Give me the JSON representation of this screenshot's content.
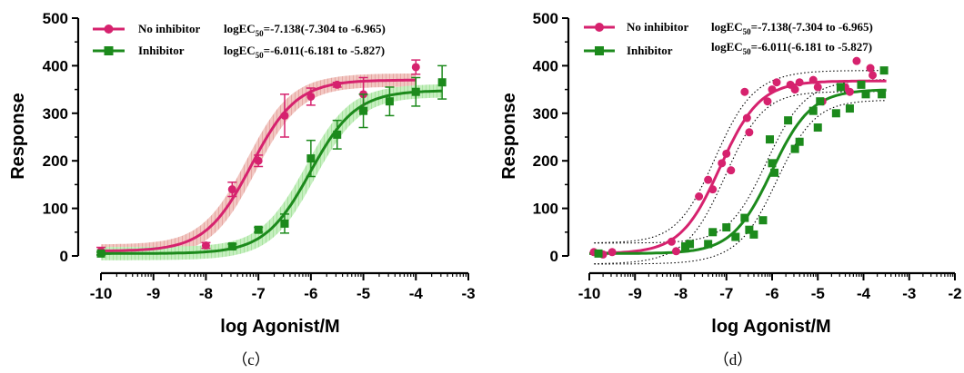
{
  "colors": {
    "no_inhibitor": "#d6226e",
    "inhibitor": "#1c8a1c",
    "band_no_inhibitor": "#e9a7a8",
    "band_inhibitor": "#a9e6a3",
    "axis": "#000000"
  },
  "chart_data": [
    {
      "panel_label": "（c）",
      "type": "scatter",
      "fit": "sigmoidal dose-response",
      "xlabel": "log Agonist/M",
      "ylabel": "Response",
      "xlim": [
        -10,
        -3
      ],
      "ylim": [
        0,
        500
      ],
      "xticks": [
        "-10",
        "-9",
        "-8",
        "-7",
        "-6",
        "-5",
        "-4",
        "-3"
      ],
      "yticks": [
        "0",
        "100",
        "200",
        "300",
        "400",
        "500"
      ],
      "band": "shaded confidence band",
      "series": [
        {
          "name": "No inhibitor",
          "logec50_text": "logEC50=-7.138(-7.304 to -6.965)",
          "marker": "circle",
          "fit_params": {
            "bottom": 10,
            "top": 370,
            "logec50": -7.138,
            "hill": 1.0
          },
          "points": [
            {
              "x": -10,
              "y": 10,
              "err": 8
            },
            {
              "x": -8,
              "y": 22,
              "err": 6
            },
            {
              "x": -7.5,
              "y": 140,
              "err": 15
            },
            {
              "x": -7,
              "y": 200,
              "err": 12
            },
            {
              "x": -6.5,
              "y": 295,
              "err": 45
            },
            {
              "x": -6,
              "y": 335,
              "err": 18
            },
            {
              "x": -5.5,
              "y": 360,
              "err": 5
            },
            {
              "x": -5,
              "y": 340,
              "err": 35
            },
            {
              "x": -4,
              "y": 397,
              "err": 15
            }
          ]
        },
        {
          "name": "Inhibitor",
          "logec50_text": "logEC50=-6.011(-6.181 to -5.827)",
          "marker": "square",
          "fit_params": {
            "bottom": 5,
            "top": 348,
            "logec50": -6.011,
            "hill": 1.0
          },
          "points": [
            {
              "x": -10,
              "y": 5,
              "err": 3
            },
            {
              "x": -7.5,
              "y": 20,
              "err": 5
            },
            {
              "x": -7,
              "y": 55,
              "err": 5
            },
            {
              "x": -6.5,
              "y": 68,
              "err": 20
            },
            {
              "x": -6,
              "y": 205,
              "err": 38
            },
            {
              "x": -5.5,
              "y": 255,
              "err": 30
            },
            {
              "x": -5,
              "y": 305,
              "err": 35
            },
            {
              "x": -4.5,
              "y": 325,
              "err": 30
            },
            {
              "x": -4,
              "y": 345,
              "err": 30
            },
            {
              "x": -3.5,
              "y": 365,
              "err": 35
            }
          ]
        }
      ]
    },
    {
      "panel_label": "（d）",
      "type": "scatter",
      "fit": "sigmoidal dose-response",
      "xlabel": "log Agonist/M",
      "ylabel": "Response",
      "xlim": [
        -10,
        -2
      ],
      "ylim": [
        0,
        500
      ],
      "xticks": [
        "-10",
        "-9",
        "-8",
        "-7",
        "-6",
        "-5",
        "-4",
        "-3",
        "-2"
      ],
      "yticks": [
        "0",
        "100",
        "200",
        "300",
        "400",
        "500"
      ],
      "band": "dotted confidence bands",
      "series": [
        {
          "name": "No inhibitor",
          "logec50_text": "logEC50=-7.138(-7.304 to -6.965)",
          "marker": "circle",
          "fit_params": {
            "bottom": 5,
            "top": 368,
            "logec50": -7.138,
            "hill": 1.0
          },
          "points": [
            {
              "x": -9.9,
              "y": 8
            },
            {
              "x": -9.7,
              "y": 3
            },
            {
              "x": -9.5,
              "y": 8
            },
            {
              "x": -8.2,
              "y": 30
            },
            {
              "x": -8.1,
              "y": 10
            },
            {
              "x": -7.6,
              "y": 125
            },
            {
              "x": -7.4,
              "y": 160
            },
            {
              "x": -7.3,
              "y": 140
            },
            {
              "x": -7.1,
              "y": 195
            },
            {
              "x": -7.0,
              "y": 215
            },
            {
              "x": -6.9,
              "y": 180
            },
            {
              "x": -6.6,
              "y": 345
            },
            {
              "x": -6.55,
              "y": 290
            },
            {
              "x": -6.5,
              "y": 260
            },
            {
              "x": -6.1,
              "y": 325
            },
            {
              "x": -6.0,
              "y": 350
            },
            {
              "x": -5.9,
              "y": 365
            },
            {
              "x": -5.6,
              "y": 360
            },
            {
              "x": -5.5,
              "y": 350
            },
            {
              "x": -5.4,
              "y": 365
            },
            {
              "x": -5.1,
              "y": 370
            },
            {
              "x": -5.0,
              "y": 355
            },
            {
              "x": -4.9,
              "y": 325
            },
            {
              "x": -4.4,
              "y": 355
            },
            {
              "x": -4.3,
              "y": 345
            },
            {
              "x": -4.15,
              "y": 410
            },
            {
              "x": -3.85,
              "y": 395
            },
            {
              "x": -3.8,
              "y": 380
            }
          ]
        },
        {
          "name": "Inhibitor",
          "logec50_text": "logEC50=-6.011(-6.181 to -5.827)",
          "marker": "square",
          "fit_params": {
            "bottom": 5,
            "top": 350,
            "logec50": -6.011,
            "hill": 1.0
          },
          "points": [
            {
              "x": -9.8,
              "y": 5
            },
            {
              "x": -7.9,
              "y": 20
            },
            {
              "x": -7.8,
              "y": 25
            },
            {
              "x": -7.4,
              "y": 25
            },
            {
              "x": -7.3,
              "y": 50
            },
            {
              "x": -7.0,
              "y": 60
            },
            {
              "x": -6.8,
              "y": 40
            },
            {
              "x": -6.6,
              "y": 80
            },
            {
              "x": -6.5,
              "y": 55
            },
            {
              "x": -6.4,
              "y": 45
            },
            {
              "x": -6.2,
              "y": 75
            },
            {
              "x": -6.05,
              "y": 245
            },
            {
              "x": -6.0,
              "y": 195
            },
            {
              "x": -5.95,
              "y": 175
            },
            {
              "x": -5.65,
              "y": 285
            },
            {
              "x": -5.5,
              "y": 225
            },
            {
              "x": -5.4,
              "y": 240
            },
            {
              "x": -5.1,
              "y": 305
            },
            {
              "x": -5.0,
              "y": 270
            },
            {
              "x": -4.95,
              "y": 325
            },
            {
              "x": -4.6,
              "y": 300
            },
            {
              "x": -4.5,
              "y": 355
            },
            {
              "x": -4.3,
              "y": 310
            },
            {
              "x": -4.05,
              "y": 360
            },
            {
              "x": -3.95,
              "y": 340
            },
            {
              "x": -3.6,
              "y": 340
            },
            {
              "x": -3.55,
              "y": 390
            }
          ]
        }
      ]
    }
  ]
}
